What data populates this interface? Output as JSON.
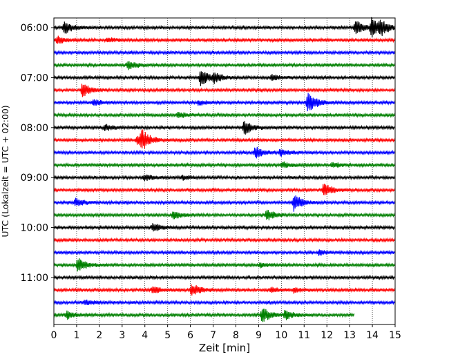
{
  "chart_data": {
    "type": "line",
    "chart_kind": "helicorder seismogram",
    "xlabel": "Zeit  [min]",
    "ylabel": "UTC (Lokalzeit = UTC + 02:00)",
    "xlim": [
      0,
      15
    ],
    "x_ticks": [
      0,
      1,
      2,
      3,
      4,
      5,
      6,
      7,
      8,
      9,
      10,
      11,
      12,
      13,
      14,
      15
    ],
    "x_grid": "dotted vertical lines",
    "row_interval_min": 15,
    "time_labels": [
      "06:00",
      "07:00",
      "08:00",
      "09:00",
      "10:00",
      "11:00"
    ],
    "colors": [
      "#000000",
      "#ff0000",
      "#0000ff",
      "#008000"
    ],
    "color_cycle": [
      "black",
      "red",
      "blue",
      "green"
    ],
    "traces": [
      {
        "start": "06:00",
        "color": "black",
        "events": [
          {
            "t": 0.4,
            "amp": 0.9
          },
          {
            "t": 13.2,
            "amp": 1.0
          },
          {
            "t": 13.9,
            "amp": 1.3
          },
          {
            "t": 14.3,
            "amp": 0.8
          }
        ],
        "end_min": 15
      },
      {
        "start": "06:15",
        "color": "red",
        "events": [
          {
            "t": 0.1,
            "amp": 0.5
          },
          {
            "t": 2.3,
            "amp": 0.3
          }
        ],
        "end_min": 15
      },
      {
        "start": "06:30",
        "color": "blue",
        "events": [],
        "end_min": 15
      },
      {
        "start": "06:45",
        "color": "green",
        "events": [
          {
            "t": 3.2,
            "amp": 0.6
          }
        ],
        "end_min": 15
      },
      {
        "start": "07:00",
        "color": "black",
        "events": [
          {
            "t": 6.4,
            "amp": 1.1
          },
          {
            "t": 7.0,
            "amp": 0.6
          },
          {
            "t": 9.5,
            "amp": 0.4
          }
        ],
        "end_min": 15
      },
      {
        "start": "07:15",
        "color": "red",
        "events": [
          {
            "t": 1.2,
            "amp": 0.9
          }
        ],
        "end_min": 15
      },
      {
        "start": "07:30",
        "color": "blue",
        "events": [
          {
            "t": 1.7,
            "amp": 0.4
          },
          {
            "t": 6.3,
            "amp": 0.3
          },
          {
            "t": 11.1,
            "amp": 1.4
          }
        ],
        "end_min": 15
      },
      {
        "start": "07:45",
        "color": "green",
        "events": [
          {
            "t": 5.4,
            "amp": 0.4
          }
        ],
        "end_min": 15
      },
      {
        "start": "08:00",
        "color": "black",
        "events": [
          {
            "t": 2.2,
            "amp": 0.4
          },
          {
            "t": 8.3,
            "amp": 1.0
          }
        ],
        "end_min": 15
      },
      {
        "start": "08:15",
        "color": "red",
        "events": [
          {
            "t": 3.6,
            "amp": 0.5
          },
          {
            "t": 3.8,
            "amp": 1.3
          }
        ],
        "end_min": 15
      },
      {
        "start": "08:30",
        "color": "blue",
        "events": [
          {
            "t": 8.8,
            "amp": 0.8
          },
          {
            "t": 9.9,
            "amp": 0.4
          }
        ],
        "end_min": 15
      },
      {
        "start": "08:45",
        "color": "green",
        "events": [
          {
            "t": 10.0,
            "amp": 0.4
          },
          {
            "t": 12.2,
            "amp": 0.3
          }
        ],
        "end_min": 15
      },
      {
        "start": "09:00",
        "color": "black",
        "events": [
          {
            "t": 3.9,
            "amp": 0.4
          },
          {
            "t": 5.6,
            "amp": 0.3
          }
        ],
        "end_min": 15
      },
      {
        "start": "09:15",
        "color": "red",
        "events": [
          {
            "t": 11.8,
            "amp": 0.9
          }
        ],
        "end_min": 15
      },
      {
        "start": "09:30",
        "color": "blue",
        "events": [
          {
            "t": 0.9,
            "amp": 0.5
          },
          {
            "t": 10.5,
            "amp": 1.1
          }
        ],
        "end_min": 15
      },
      {
        "start": "09:45",
        "color": "green",
        "events": [
          {
            "t": 5.2,
            "amp": 0.5
          },
          {
            "t": 9.3,
            "amp": 0.7
          }
        ],
        "end_min": 15
      },
      {
        "start": "10:00",
        "color": "black",
        "events": [
          {
            "t": 4.3,
            "amp": 0.5
          }
        ],
        "end_min": 15
      },
      {
        "start": "10:15",
        "color": "red",
        "events": [],
        "end_min": 15
      },
      {
        "start": "10:30",
        "color": "blue",
        "events": [
          {
            "t": 11.6,
            "amp": 0.3
          }
        ],
        "end_min": 15
      },
      {
        "start": "10:45",
        "color": "green",
        "events": [
          {
            "t": 1.0,
            "amp": 0.9
          },
          {
            "t": 9.0,
            "amp": 0.3
          }
        ],
        "end_min": 15
      },
      {
        "start": "11:00",
        "color": "black",
        "events": [],
        "end_min": 15
      },
      {
        "start": "11:15",
        "color": "red",
        "events": [
          {
            "t": 4.3,
            "amp": 0.5
          },
          {
            "t": 6.0,
            "amp": 0.9
          },
          {
            "t": 9.5,
            "amp": 0.3
          },
          {
            "t": 10.5,
            "amp": 0.3
          }
        ],
        "end_min": 15
      },
      {
        "start": "11:30",
        "color": "blue",
        "events": [
          {
            "t": 1.3,
            "amp": 0.4
          }
        ],
        "end_min": 15
      },
      {
        "start": "11:45",
        "color": "green",
        "events": [
          {
            "t": 0.5,
            "amp": 0.5
          },
          {
            "t": 9.1,
            "amp": 1.0
          },
          {
            "t": 10.1,
            "amp": 0.6
          }
        ],
        "end_min": 13.2
      }
    ]
  }
}
